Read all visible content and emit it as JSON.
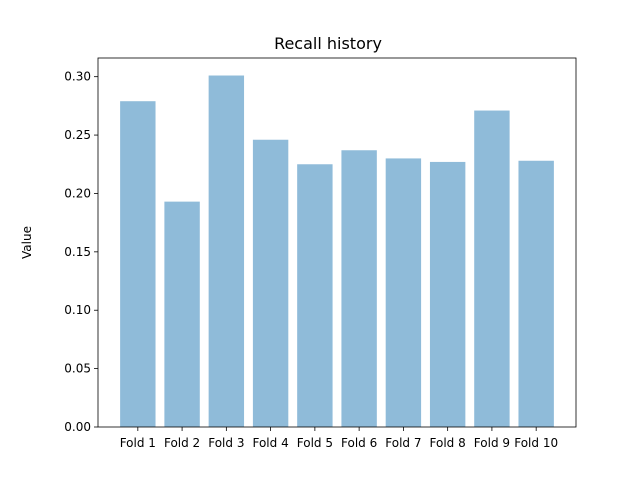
{
  "chart_data": {
    "type": "bar",
    "title": "Recall history",
    "xlabel": "",
    "ylabel": "Value",
    "categories": [
      "Fold 1",
      "Fold 2",
      "Fold 3",
      "Fold 4",
      "Fold 5",
      "Fold 6",
      "Fold 7",
      "Fold 8",
      "Fold 9",
      "Fold 10"
    ],
    "values": [
      0.279,
      0.193,
      0.301,
      0.246,
      0.225,
      0.237,
      0.23,
      0.227,
      0.271,
      0.228
    ],
    "ylim": [
      0,
      0.316
    ],
    "yticks": [
      "0.00",
      "0.05",
      "0.10",
      "0.15",
      "0.20",
      "0.25",
      "0.30"
    ],
    "bar_color": "#8fbbd9",
    "grid": false,
    "legend": "none"
  }
}
